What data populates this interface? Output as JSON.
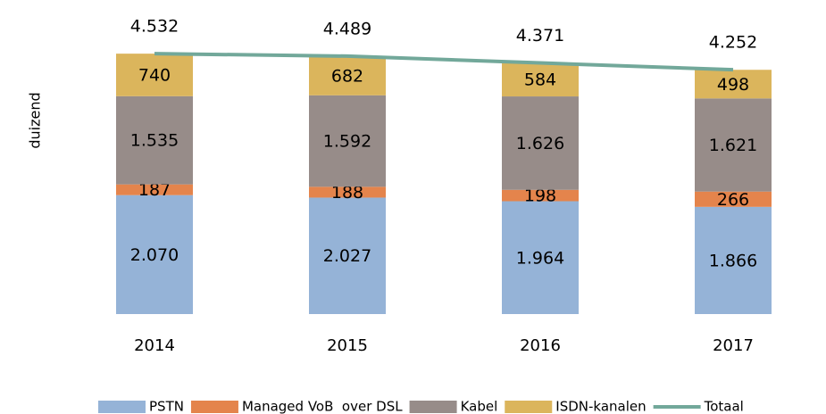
{
  "chart_data": {
    "type": "bar",
    "stacked": true,
    "ylabel": "duizend",
    "categories": [
      "2014",
      "2015",
      "2016",
      "2017"
    ],
    "ylim": [
      0,
      5000
    ],
    "series": [
      {
        "name": "PSTN",
        "color": "#95b3d7",
        "values": [
          2070,
          2027,
          1964,
          1866
        ],
        "value_labels": [
          "2.070",
          "2.027",
          "1.964",
          "1.866"
        ]
      },
      {
        "name": "Managed VoB  over DSL",
        "color": "#e4844c",
        "values": [
          187,
          188,
          198,
          266
        ],
        "value_labels": [
          "187",
          "188",
          "198",
          "266"
        ]
      },
      {
        "name": "Kabel",
        "color": "#978c89",
        "values": [
          1535,
          1592,
          1626,
          1621
        ],
        "value_labels": [
          "1.535",
          "1.592",
          "1.626",
          "1.621"
        ]
      },
      {
        "name": "ISDN-kanalen",
        "color": "#dbb55c",
        "values": [
          740,
          682,
          584,
          498
        ],
        "value_labels": [
          "740",
          "682",
          "584",
          "498"
        ]
      },
      {
        "name": "Totaal",
        "type": "line",
        "color": "#72a89a",
        "values": [
          4532,
          4489,
          4371,
          4252
        ],
        "value_labels": [
          "4.532",
          "4.489",
          "4.371",
          "4.252"
        ]
      }
    ],
    "legend": "bottom"
  }
}
